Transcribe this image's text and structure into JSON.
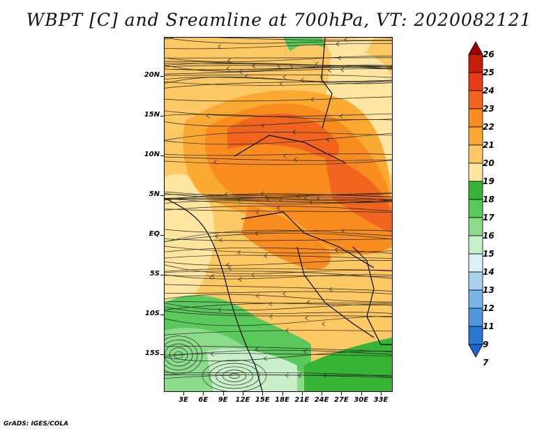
{
  "title": "WBPT [C] and Sreamline at 700hPa, VT: 2020082121",
  "credit": "GrADS: IGES/COLA",
  "lat_labels": [
    "20N",
    "15N",
    "10N",
    "5N",
    "EQ",
    "5S",
    "10S",
    "15S"
  ],
  "lon_labels": [
    "3E",
    "6E",
    "9E",
    "12E",
    "15E",
    "18E",
    "21E",
    "24E",
    "27E",
    "30E",
    "33E"
  ],
  "colorbar": {
    "labels": [
      "26",
      "25",
      "24",
      "23",
      "22",
      "21",
      "20",
      "19",
      "18",
      "17",
      "16",
      "15",
      "14",
      "13",
      "12",
      "11",
      "9",
      "7"
    ],
    "colors": [
      "#a00000",
      "#c81e0a",
      "#e63c14",
      "#f0641e",
      "#f88c1e",
      "#faaa32",
      "#fcc864",
      "#fee6a0",
      "#36b436",
      "#5ac85a",
      "#8cdc8c",
      "#c8f0c8",
      "#dcf0f8",
      "#aad2f0",
      "#78b4e6",
      "#5096dc",
      "#2878d2",
      "#1e64c8"
    ]
  }
}
